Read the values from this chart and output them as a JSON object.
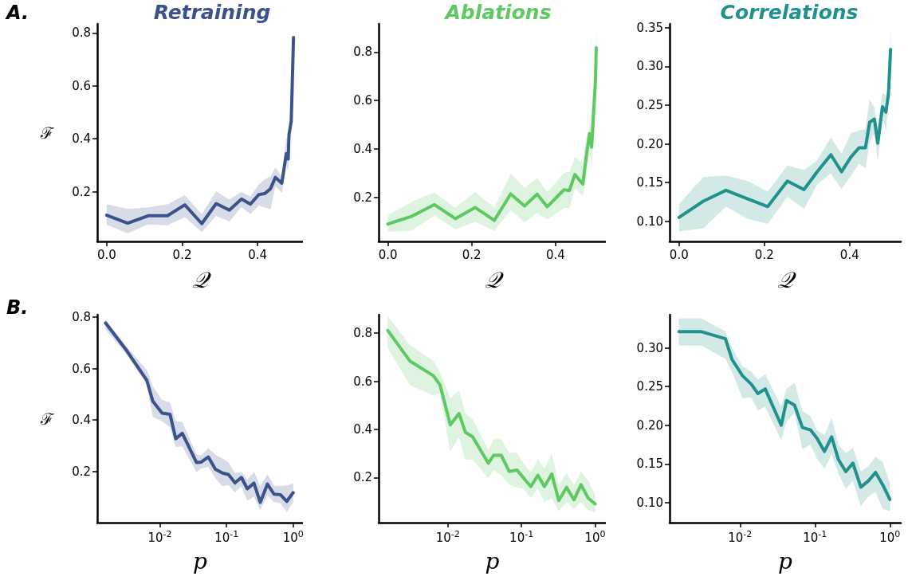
{
  "chart_data": [
    {
      "type": "line",
      "title": "Retraining",
      "xlabel": "𝒬",
      "ylabel": "ℱ",
      "annotations": [
        "A."
      ],
      "marker": "none",
      "line_style": "solid",
      "xlim": [
        -0.025,
        0.52
      ],
      "ylim": [
        0.012,
        0.834
      ],
      "xticks": [
        {
          "value": 0,
          "label": "0.0"
        },
        {
          "value": 0.2,
          "label": "0.2"
        },
        {
          "value": 0.4,
          "label": "0.4"
        }
      ],
      "yticks": [
        0.2,
        0.4,
        0.6,
        0.8
      ],
      "x": [
        0,
        0.0555,
        0.11,
        0.161,
        0.207,
        0.252,
        0.29,
        0.325,
        0.357,
        0.381,
        0.403,
        0.419,
        0.434,
        0.447,
        0.464,
        0.476,
        0.481,
        0.483,
        0.489,
        0.495
      ],
      "series": [
        {
          "color": "#3b528b",
          "values": [
            0.111,
            0.081,
            0.109,
            0.109,
            0.15,
            0.079,
            0.155,
            0.13,
            0.172,
            0.153,
            0.189,
            0.193,
            0.211,
            0.254,
            0.232,
            0.344,
            0.323,
            0.415,
            0.466,
            0.783
          ],
          "lower": [
            0.075,
            0.043,
            0.077,
            0.073,
            0.104,
            0.048,
            0.109,
            0.087,
            0.142,
            0.116,
            0.148,
            0.14,
            0.135,
            0.221,
            0.196,
            0.303,
            0.28,
            0.38,
            0.43,
            0.76
          ],
          "upper": [
            0.152,
            0.135,
            0.14,
            0.152,
            0.186,
            0.114,
            0.201,
            0.17,
            0.199,
            0.181,
            0.227,
            0.247,
            0.257,
            0.291,
            0.257,
            0.405,
            0.38,
            0.45,
            0.5,
            0.8
          ]
        }
      ]
    },
    {
      "type": "line",
      "title": "Ablations",
      "xlabel": "𝒬",
      "marker": "none",
      "line_style": "solid",
      "xlim": [
        -0.022,
        0.52
      ],
      "ylim": [
        0.018,
        0.916
      ],
      "xticks": [
        {
          "value": 0,
          "label": "0.0"
        },
        {
          "value": 0.2,
          "label": "0.2"
        },
        {
          "value": 0.4,
          "label": "0.4"
        }
      ],
      "yticks": [
        0.2,
        0.4,
        0.6,
        0.8
      ],
      "x": [
        0,
        0.056,
        0.111,
        0.161,
        0.208,
        0.254,
        0.293,
        0.326,
        0.356,
        0.38,
        0.42,
        0.433,
        0.446,
        0.465,
        0.473,
        0.481,
        0.486,
        0.495,
        0.497
      ],
      "series": [
        {
          "color": "#5ec962",
          "values": [
            0.09,
            0.121,
            0.17,
            0.112,
            0.158,
            0.105,
            0.214,
            0.164,
            0.213,
            0.161,
            0.231,
            0.228,
            0.294,
            0.255,
            0.365,
            0.464,
            0.407,
            0.674,
            0.817
          ],
          "lower": [
            0.059,
            0.062,
            0.125,
            0.068,
            0.099,
            0.062,
            0.147,
            0.099,
            0.136,
            0.109,
            0.156,
            0.156,
            0.239,
            0.206,
            0.277,
            0.398,
            0.316,
            0.585,
            0.762
          ],
          "upper": [
            0.125,
            0.18,
            0.22,
            0.156,
            0.222,
            0.156,
            0.297,
            0.239,
            0.28,
            0.22,
            0.301,
            0.305,
            0.365,
            0.343,
            0.442,
            0.486,
            0.563,
            0.751,
            0.877
          ]
        }
      ]
    },
    {
      "type": "line",
      "title": "Correlations",
      "xlabel": "𝒬",
      "marker": "none",
      "line_style": "solid",
      "xlim": [
        -0.022,
        0.52
      ],
      "ylim": [
        0.074,
        0.355
      ],
      "xticks": [
        {
          "value": 0,
          "label": "0.0"
        },
        {
          "value": 0.2,
          "label": "0.2"
        },
        {
          "value": 0.4,
          "label": "0.4"
        }
      ],
      "yticks": [
        {
          "value": 0.1,
          "label": "0.10"
        },
        0.15,
        {
          "value": 0.2,
          "label": "0.20"
        },
        0.25,
        {
          "value": 0.3,
          "label": "0.30"
        },
        0.35
      ],
      "x": [
        0,
        0.057,
        0.11,
        0.161,
        0.208,
        0.254,
        0.293,
        0.324,
        0.356,
        0.381,
        0.403,
        0.422,
        0.437,
        0.447,
        0.458,
        0.466,
        0.477,
        0.485,
        0.491,
        0.496
      ],
      "series": [
        {
          "color": "#21918c",
          "values": [
            0.105,
            0.126,
            0.14,
            0.129,
            0.119,
            0.152,
            0.141,
            0.164,
            0.186,
            0.164,
            0.183,
            0.195,
            0.195,
            0.228,
            0.232,
            0.201,
            0.248,
            0.241,
            0.264,
            0.322
          ],
          "lower": [
            0.087,
            0.091,
            0.119,
            0.103,
            0.097,
            0.132,
            0.116,
            0.148,
            0.162,
            0.142,
            0.159,
            0.175,
            0.169,
            0.203,
            0.214,
            0.179,
            0.236,
            0.217,
            0.255,
            0.303
          ],
          "upper": [
            0.122,
            0.157,
            0.159,
            0.152,
            0.138,
            0.172,
            0.166,
            0.179,
            0.208,
            0.187,
            0.214,
            0.217,
            0.219,
            0.257,
            0.247,
            0.219,
            0.266,
            0.262,
            0.274,
            0.343
          ]
        }
      ]
    },
    {
      "type": "line",
      "xlabel": "p",
      "ylabel": "ℱ",
      "annotations": [
        "B."
      ],
      "log": "x",
      "marker": "none",
      "line_style": "solid",
      "xlim": [
        0.00115,
        1.4
      ],
      "ylim": [
        0.0,
        0.81
      ],
      "xticks": [
        {
          "value": 0.01,
          "label": "10$^{-2}$"
        },
        {
          "value": 0.1,
          "label": "10$^{-1}$"
        },
        {
          "value": 1,
          "label": "10$^{0}$"
        }
      ],
      "yticks": [
        0.2,
        0.4,
        0.6,
        0.8
      ],
      "x": [
        0.00153,
        0.00306,
        0.00638,
        0.00783,
        0.0108,
        0.0142,
        0.0173,
        0.0217,
        0.0355,
        0.0418,
        0.0533,
        0.0681,
        0.0871,
        0.1067,
        0.134,
        0.167,
        0.205,
        0.258,
        0.321,
        0.41,
        0.516,
        0.644,
        0.802,
        1
      ],
      "series": [
        {
          "color": "#3b528b",
          "values": [
            0.778,
            0.676,
            0.554,
            0.473,
            0.427,
            0.422,
            0.327,
            0.348,
            0.234,
            0.236,
            0.256,
            0.208,
            0.193,
            0.188,
            0.155,
            0.176,
            0.132,
            0.154,
            0.079,
            0.15,
            0.111,
            0.109,
            0.083,
            0.117
          ],
          "lower": [
            0.753,
            0.66,
            0.539,
            0.412,
            0.396,
            0.371,
            0.295,
            0.297,
            0.198,
            0.211,
            0.218,
            0.173,
            0.142,
            0.147,
            0.117,
            0.142,
            0.086,
            0.101,
            0.05,
            0.106,
            0.081,
            0.076,
            0.042,
            0.081
          ],
          "upper": [
            0.79,
            0.69,
            0.595,
            0.531,
            0.478,
            0.468,
            0.396,
            0.391,
            0.264,
            0.262,
            0.29,
            0.264,
            0.249,
            0.234,
            0.193,
            0.198,
            0.167,
            0.198,
            0.142,
            0.188,
            0.144,
            0.142,
            0.144,
            0.152
          ]
        }
      ]
    },
    {
      "type": "line",
      "xlabel": "p",
      "log": "x",
      "marker": "none",
      "line_style": "solid",
      "xlim": [
        0.00115,
        1.4
      ],
      "ylim": [
        0.012,
        0.877
      ],
      "xticks": [
        {
          "value": 0.01,
          "label": "10$^{-2}$"
        },
        {
          "value": 0.1,
          "label": "10$^{-1}$"
        },
        {
          "value": 1,
          "label": "10$^{0}$"
        }
      ],
      "yticks": [
        0.2,
        0.4,
        0.6,
        0.8
      ],
      "x": [
        0.00153,
        0.00306,
        0.00638,
        0.00783,
        0.0108,
        0.0142,
        0.0173,
        0.0217,
        0.0355,
        0.0418,
        0.0533,
        0.0681,
        0.0871,
        0.1067,
        0.134,
        0.167,
        0.205,
        0.258,
        0.321,
        0.41,
        0.516,
        0.644,
        0.802,
        1
      ],
      "series": [
        {
          "color": "#5ec962",
          "values": [
            0.811,
            0.684,
            0.623,
            0.585,
            0.419,
            0.466,
            0.388,
            0.369,
            0.259,
            0.292,
            0.292,
            0.225,
            0.231,
            0.198,
            0.162,
            0.209,
            0.162,
            0.214,
            0.104,
            0.159,
            0.107,
            0.17,
            0.115,
            0.09
          ],
          "lower": [
            0.739,
            0.585,
            0.54,
            0.551,
            0.308,
            0.369,
            0.275,
            0.275,
            0.198,
            0.231,
            0.209,
            0.17,
            0.159,
            0.154,
            0.115,
            0.154,
            0.098,
            0.115,
            0.06,
            0.098,
            0.071,
            0.098,
            0.065,
            0.056
          ],
          "upper": [
            0.87,
            0.75,
            0.684,
            0.634,
            0.529,
            0.56,
            0.468,
            0.441,
            0.314,
            0.358,
            0.358,
            0.303,
            0.303,
            0.259,
            0.22,
            0.275,
            0.236,
            0.297,
            0.165,
            0.22,
            0.165,
            0.225,
            0.187,
            0.126
          ]
        }
      ]
    },
    {
      "type": "line",
      "xlabel": "p",
      "log": "x",
      "marker": "none",
      "line_style": "solid",
      "xlim": [
        0.00115,
        1.4
      ],
      "ylim": [
        0.074,
        0.343
      ],
      "xticks": [
        {
          "value": 0.01,
          "label": "10$^{-2}$"
        },
        {
          "value": 0.1,
          "label": "10$^{-1}$"
        },
        {
          "value": 1,
          "label": "10$^{0}$"
        }
      ],
      "yticks": [
        {
          "value": 0.1,
          "label": "0.10"
        },
        0.15,
        {
          "value": 0.2,
          "label": "0.20"
        },
        0.25,
        {
          "value": 0.3,
          "label": "0.30"
        }
      ],
      "x": [
        0.00153,
        0.00306,
        0.00638,
        0.00783,
        0.0108,
        0.0142,
        0.0173,
        0.0217,
        0.0355,
        0.0418,
        0.0533,
        0.0681,
        0.0871,
        0.1067,
        0.134,
        0.167,
        0.205,
        0.258,
        0.321,
        0.41,
        0.516,
        0.644,
        0.802,
        1
      ],
      "series": [
        {
          "color": "#21918c",
          "values": [
            0.321,
            0.321,
            0.312,
            0.285,
            0.264,
            0.253,
            0.241,
            0.247,
            0.2,
            0.232,
            0.226,
            0.197,
            0.194,
            0.183,
            0.166,
            0.185,
            0.156,
            0.14,
            0.151,
            0.12,
            0.128,
            0.139,
            0.123,
            0.104
          ],
          "lower": [
            0.303,
            0.303,
            0.286,
            0.269,
            0.235,
            0.236,
            0.219,
            0.224,
            0.181,
            0.205,
            0.216,
            0.169,
            0.175,
            0.157,
            0.144,
            0.163,
            0.138,
            0.118,
            0.128,
            0.096,
            0.108,
            0.114,
            0.092,
            0.089
          ],
          "upper": [
            0.338,
            0.338,
            0.321,
            0.3,
            0.276,
            0.269,
            0.259,
            0.266,
            0.224,
            0.247,
            0.255,
            0.218,
            0.212,
            0.193,
            0.187,
            0.209,
            0.175,
            0.164,
            0.171,
            0.14,
            0.147,
            0.159,
            0.152,
            0.125
          ]
        }
      ]
    }
  ]
}
